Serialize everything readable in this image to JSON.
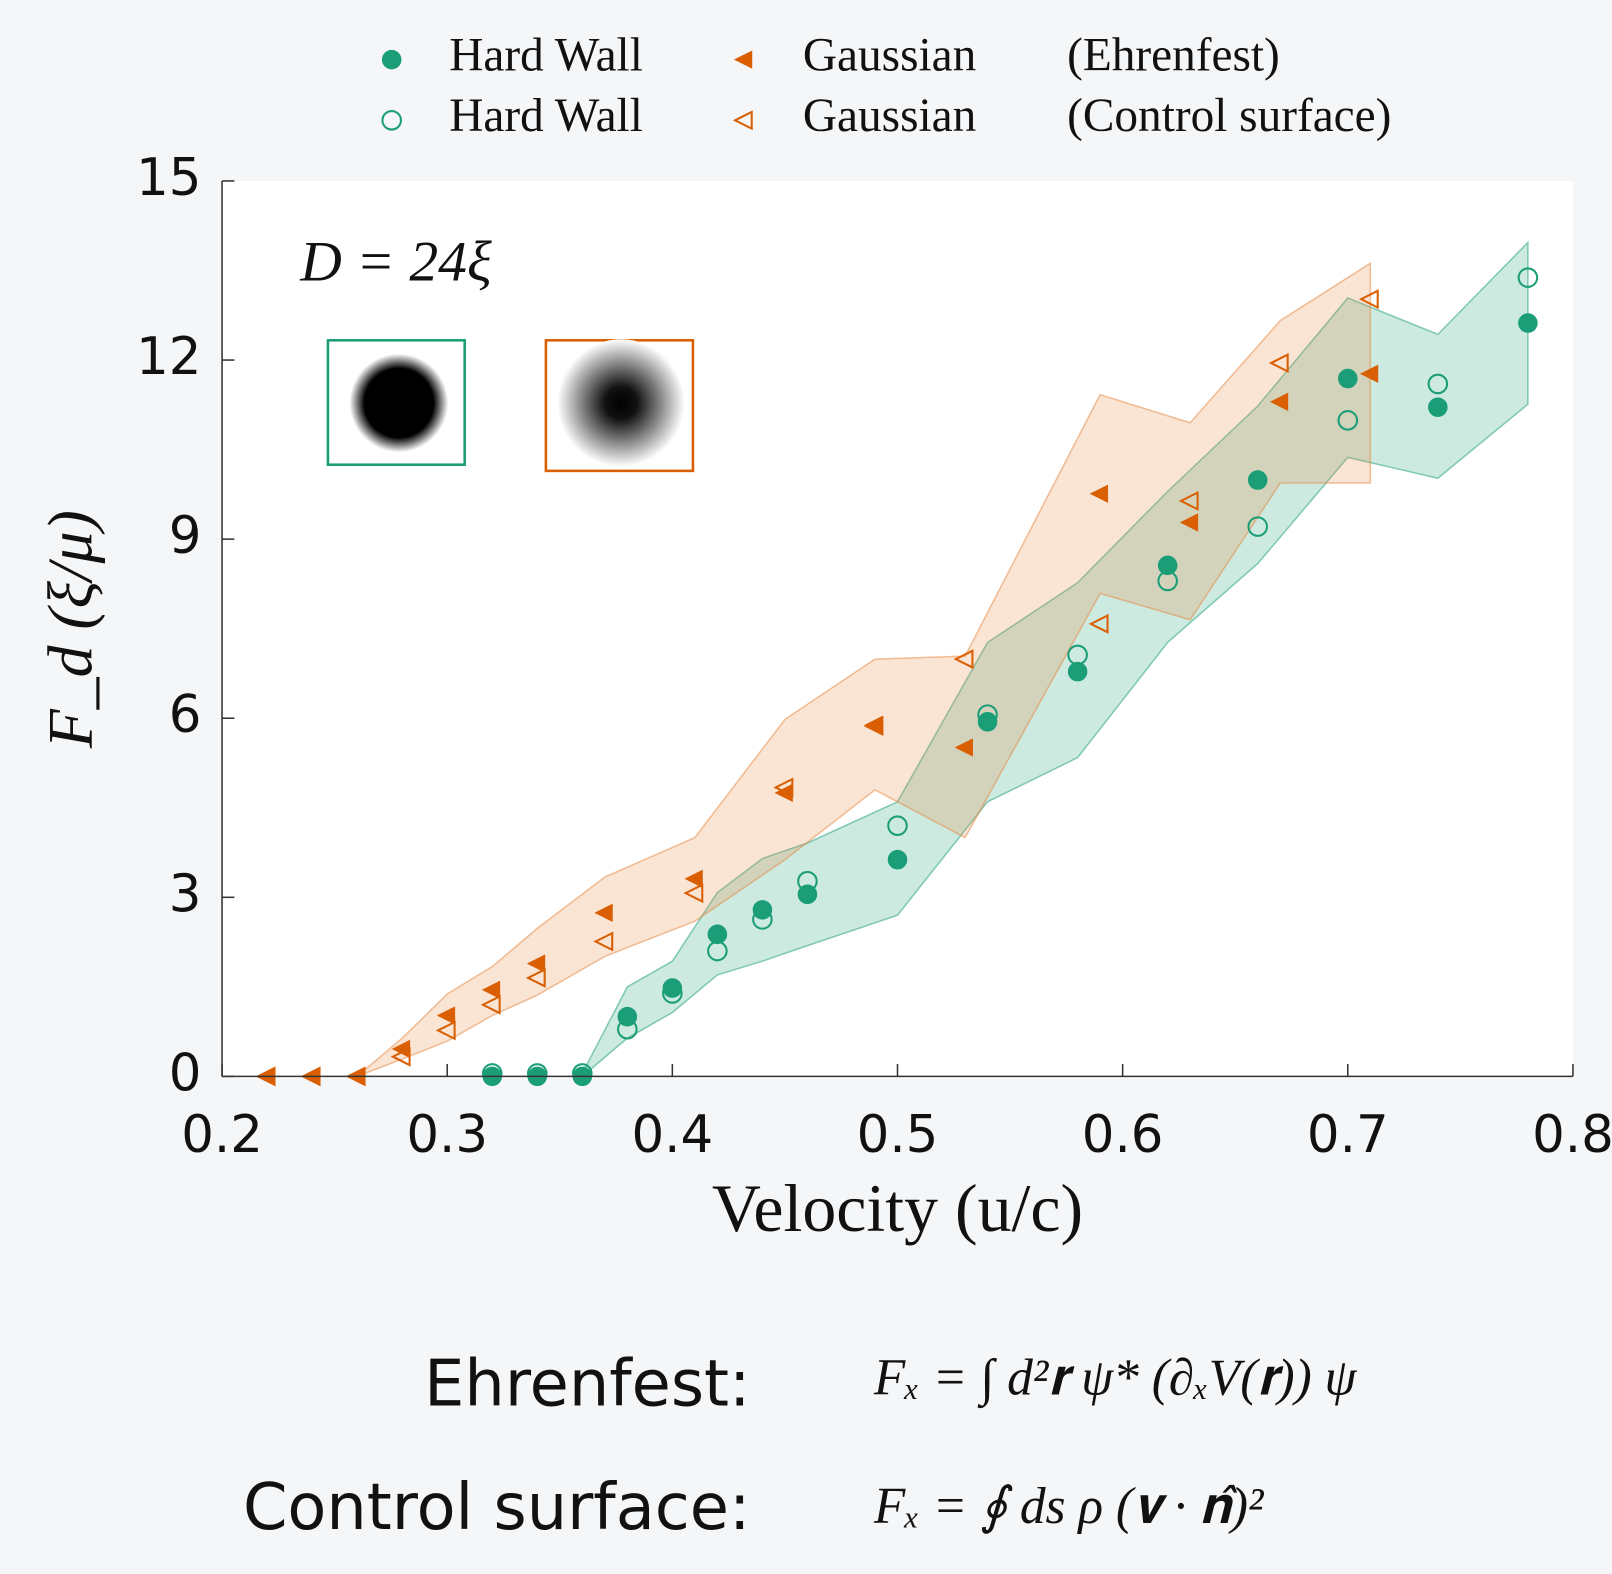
{
  "chart_data": {
    "type": "scatter",
    "xlabel": "Velocity (u/c)",
    "ylabel": "F_d (ξ/μ)",
    "annotation": "D = 24ξ",
    "xlim": [
      0.2,
      0.8
    ],
    "xticks": [
      0.2,
      0.3,
      0.4,
      0.5,
      0.6,
      0.7,
      0.8
    ],
    "ylim": [
      0,
      15
    ],
    "yticks": [
      0,
      3,
      6,
      9,
      12,
      15
    ],
    "methods": [
      "(Ehrenfest)",
      "(Control surface)"
    ],
    "series": [
      {
        "name": "Hard Wall",
        "color": "#1b9e77",
        "marker": "filled-circle",
        "x": [
          0.32,
          0.34,
          0.36,
          0.38,
          0.4,
          0.42,
          0.44,
          0.46,
          0.5,
          0.54,
          0.58,
          0.62,
          0.66,
          0.7,
          0.74,
          0.78
        ],
        "values": [
          0,
          0,
          0,
          1.0,
          1.48,
          2.38,
          2.79,
          3.05,
          3.63,
          5.94,
          6.78,
          8.56,
          9.99,
          11.69,
          11.21,
          12.62
        ]
      },
      {
        "name": "Hard Wall",
        "color": "#1b9e77",
        "marker": "open-circle",
        "x": [
          0.32,
          0.34,
          0.36,
          0.38,
          0.4,
          0.42,
          0.44,
          0.46,
          0.5,
          0.54,
          0.58,
          0.62,
          0.66,
          0.7,
          0.74,
          0.78
        ],
        "values": [
          0.05,
          0.05,
          0.05,
          0.79,
          1.39,
          2.1,
          2.63,
          3.27,
          4.2,
          6.06,
          7.06,
          8.3,
          9.21,
          10.99,
          11.6,
          13.38
        ]
      },
      {
        "name": "Gaussian",
        "color": "#d95f02",
        "marker": "filled-triangle",
        "x": [
          0.22,
          0.24,
          0.26,
          0.28,
          0.3,
          0.32,
          0.34,
          0.37,
          0.41,
          0.45,
          0.49,
          0.53,
          0.59,
          0.63,
          0.67,
          0.71
        ],
        "values": [
          0,
          0,
          0,
          0.46,
          1.02,
          1.45,
          1.89,
          2.74,
          3.31,
          4.75,
          5.89,
          5.51,
          9.76,
          9.28,
          11.3,
          11.77
        ]
      },
      {
        "name": "Gaussian",
        "color": "#d95f02",
        "marker": "open-triangle",
        "x": [
          0.22,
          0.24,
          0.26,
          0.28,
          0.3,
          0.32,
          0.34,
          0.37,
          0.41,
          0.45,
          0.49,
          0.53,
          0.59,
          0.63,
          0.67,
          0.71
        ],
        "values": [
          0,
          0,
          0,
          0.33,
          0.77,
          1.2,
          1.65,
          2.26,
          3.07,
          4.84,
          5.87,
          6.99,
          7.58,
          9.64,
          11.95,
          13.02
        ]
      }
    ],
    "bands": [
      {
        "color": "#1b9e77",
        "x": [
          0.36,
          0.38,
          0.4,
          0.42,
          0.44,
          0.46,
          0.5,
          0.54,
          0.58,
          0.62,
          0.66,
          0.7,
          0.74,
          0.78
        ],
        "upper": [
          0.05,
          1.5,
          1.93,
          3.08,
          3.65,
          3.91,
          4.6,
          7.27,
          8.27,
          9.8,
          11.23,
          13.04,
          12.43,
          13.97
        ],
        "lower": [
          0,
          0.64,
          1.07,
          1.7,
          1.93,
          2.19,
          2.7,
          4.6,
          5.34,
          7.27,
          8.59,
          10.37,
          10.02,
          11.26
        ]
      },
      {
        "color": "#e6853c",
        "x": [
          0.26,
          0.28,
          0.3,
          0.32,
          0.34,
          0.37,
          0.41,
          0.45,
          0.49,
          0.53,
          0.59,
          0.63,
          0.67,
          0.71
        ],
        "upper": [
          0,
          0.64,
          1.38,
          1.84,
          2.48,
          3.34,
          4.0,
          5.98,
          6.99,
          7.04,
          11.42,
          10.95,
          12.66,
          13.62
        ],
        "lower": [
          0,
          0.29,
          0.59,
          1.02,
          1.36,
          2.01,
          2.6,
          3.63,
          4.8,
          4.0,
          8.09,
          7.65,
          9.94,
          9.94
        ]
      }
    ]
  },
  "equations": [
    {
      "label": "Ehrenfest:",
      "formula": "Fₓ = ∫ d²𝐫 ψ* (∂ₓV(𝐫)) ψ"
    },
    {
      "label": "Control surface:",
      "formula": "Fₓ = ∮ ds ρ (𝐯 · 𝐧̂)²"
    }
  ]
}
